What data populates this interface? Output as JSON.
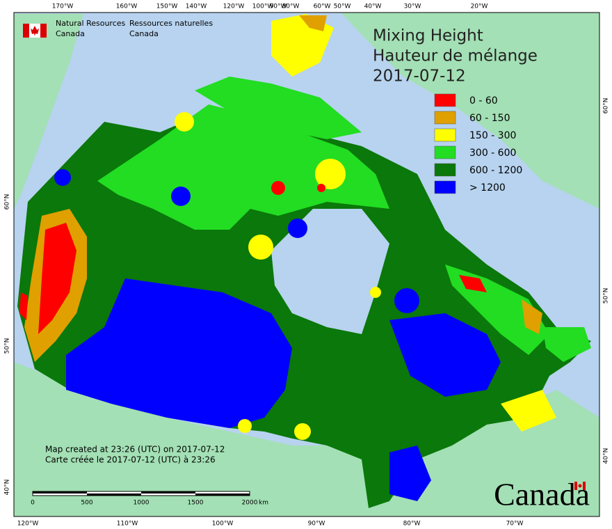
{
  "agency": {
    "en": [
      "Natural Resources",
      "Canada"
    ],
    "fr": [
      "Ressources naturelles",
      "Canada"
    ]
  },
  "title": [
    "Mixing Height",
    "Hauteur de mélange",
    "2017-07-12"
  ],
  "legend": [
    {
      "label": "0 - 60",
      "color": "#ff0000"
    },
    {
      "label": "60 - 150",
      "color": "#e0a000"
    },
    {
      "label": "150 - 300",
      "color": "#ffff00"
    },
    {
      "label": "300 - 600",
      "color": "#22dd22"
    },
    {
      "label": "600 - 1200",
      "color": "#0a780a"
    },
    {
      "label": "> 1200",
      "color": "#0000ff"
    }
  ],
  "graticule": {
    "top": [
      "170°W",
      "160°W",
      "150°W",
      "140°W",
      "120°W",
      "100°W",
      "90°W",
      "80°W",
      "60°W",
      "50°W",
      "40°W",
      "30°W",
      "20°W"
    ],
    "bottom": [
      "120°W",
      "110°W",
      "100°W",
      "90°W",
      "80°W",
      "70°W"
    ],
    "left": [
      "60°N",
      "50°N",
      "40°N"
    ],
    "right": [
      "60°N",
      "50°N",
      "40°N"
    ]
  },
  "notes": [
    "Map created at 23:26 (UTC) on 2017-07-12",
    "Carte créée le 2017-07-12 (UTC) à 23:26"
  ],
  "scale_bar": {
    "labels": [
      "0",
      "500",
      "1000",
      "1500",
      "2000"
    ],
    "unit": "km"
  },
  "wordmark": "Canada"
}
